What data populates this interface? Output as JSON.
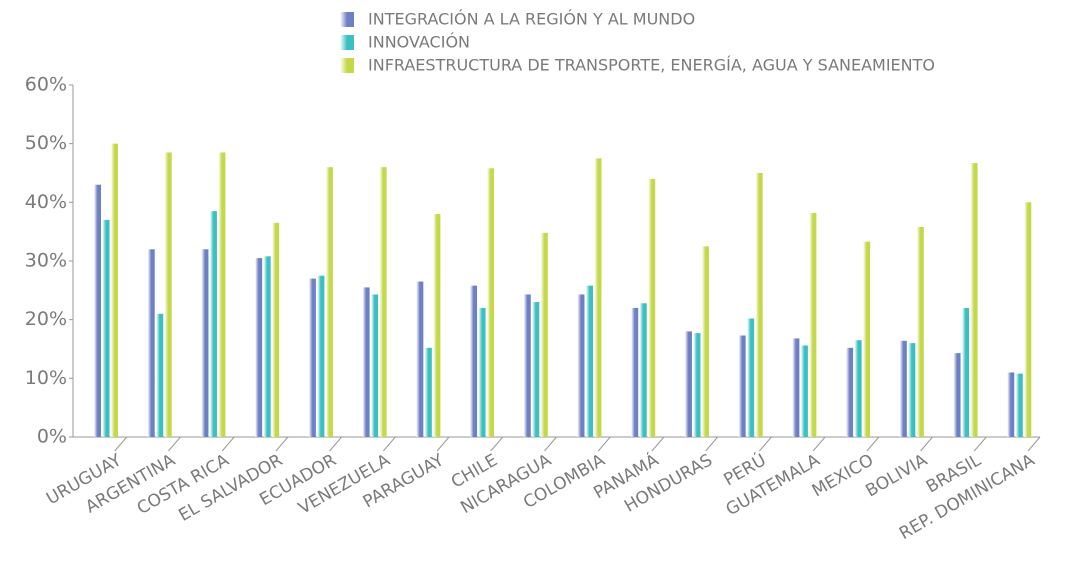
{
  "chart_data": {
    "type": "bar",
    "categories": [
      "URUGUAY",
      "ARGENTINA",
      "COSTA RICA",
      "EL SALVADOR",
      "ECUADOR",
      "VENEZUELA",
      "PARAGUAY",
      "CHILE",
      "NICARAGUA",
      "COLOMBIA",
      "PANAMÁ",
      "HONDURAS",
      "PERÚ",
      "GUATEMALA",
      "MEXICO",
      "BOLIVIA",
      "BRASIL",
      "REP. DOMINICANA"
    ],
    "series": [
      {
        "name": "INTEGRACIÓN A LA REGIÓN Y AL MUNDO",
        "color": "#6f7fc4",
        "values": [
          43,
          32,
          32,
          30.5,
          27,
          25.5,
          26.5,
          25.8,
          24.3,
          24.3,
          22,
          18,
          17.3,
          16.8,
          15.2,
          16.4,
          14.3,
          11
        ]
      },
      {
        "name": "INNOVACIÓN",
        "color": "#3bbfc0",
        "values": [
          37,
          21,
          38.5,
          30.8,
          27.5,
          24.3,
          15.2,
          22,
          23,
          25.8,
          22.8,
          17.7,
          20.2,
          15.6,
          16.5,
          16,
          22,
          10.8
        ]
      },
      {
        "name": "INFRAESTRUCTURA DE TRANSPORTE, ENERGÍA, AGUA Y SANEAMIENTO",
        "color": "#c4d84a",
        "values": [
          50,
          48.5,
          48.5,
          36.5,
          46,
          46,
          38,
          45.8,
          34.8,
          47.5,
          44,
          32.5,
          45,
          38.2,
          33.3,
          35.8,
          46.7,
          40
        ]
      }
    ],
    "ylim": [
      0,
      60
    ],
    "yticks": [
      {
        "value": 0,
        "label": "0%"
      },
      {
        "value": 10,
        "label": "10%"
      },
      {
        "value": 20,
        "label": "20%"
      },
      {
        "value": 30,
        "label": "30%"
      },
      {
        "value": 40,
        "label": "40%"
      },
      {
        "value": 50,
        "label": "50%"
      },
      {
        "value": 60,
        "label": "60%"
      }
    ]
  }
}
